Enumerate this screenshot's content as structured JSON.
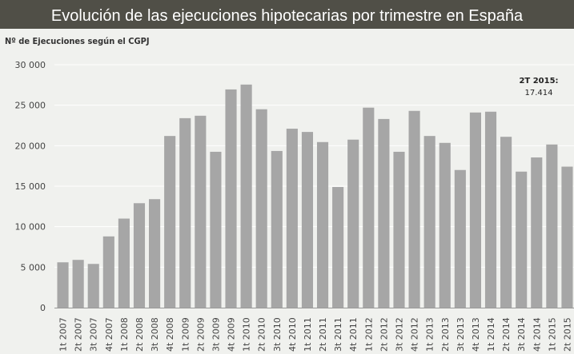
{
  "header": {
    "title": "Evolución de las ejecuciones hipotecarias por trimestre en España"
  },
  "chart_data": {
    "type": "bar",
    "title": "Evolución de las ejecuciones hipotecarias por trimestre en España",
    "ylabel": "Nº de Ejecuciones según el CGPJ",
    "xlabel": "",
    "ylim": [
      0,
      30000
    ],
    "yticks": [
      0,
      5000,
      10000,
      15000,
      20000,
      25000,
      30000
    ],
    "ytick_labels": [
      "0",
      "5 000",
      "10 000",
      "15 000",
      "20 000",
      "25 000",
      "30 000"
    ],
    "grid": true,
    "bar_color": "#a6a6a6",
    "categories": [
      "1t 2007",
      "2t 2007",
      "3t 2007",
      "4t 2007",
      "1t 2008",
      "2t 2008",
      "3t 2008",
      "4t 2008",
      "1t 2009",
      "2t 2009",
      "3t 2009",
      "4t 2009",
      "1t 2010",
      "2t 2010",
      "3t 2010",
      "4t 2010",
      "1t 2011",
      "2t 2011",
      "3t 2011",
      "4t 2011",
      "1t 2012",
      "2t 2012",
      "3t 2012",
      "4t 2012",
      "1t 2013",
      "2t 2013",
      "3t 2013",
      "4t 2013",
      "1t 2014",
      "2t 2014",
      "3t 2014",
      "4t 2014",
      "1t 2015",
      "2t 2015"
    ],
    "values": [
      5600,
      5900,
      5400,
      8800,
      11000,
      12900,
      13400,
      21200,
      23400,
      23700,
      19250,
      26950,
      27550,
      24500,
      19350,
      22100,
      21700,
      20450,
      14900,
      20750,
      24700,
      23300,
      19250,
      24300,
      21200,
      20350,
      17000,
      24100,
      24200,
      21100,
      16800,
      18550,
      20150,
      17414
    ],
    "annotation": {
      "label": "2T 2015:",
      "value": "17.414"
    }
  }
}
